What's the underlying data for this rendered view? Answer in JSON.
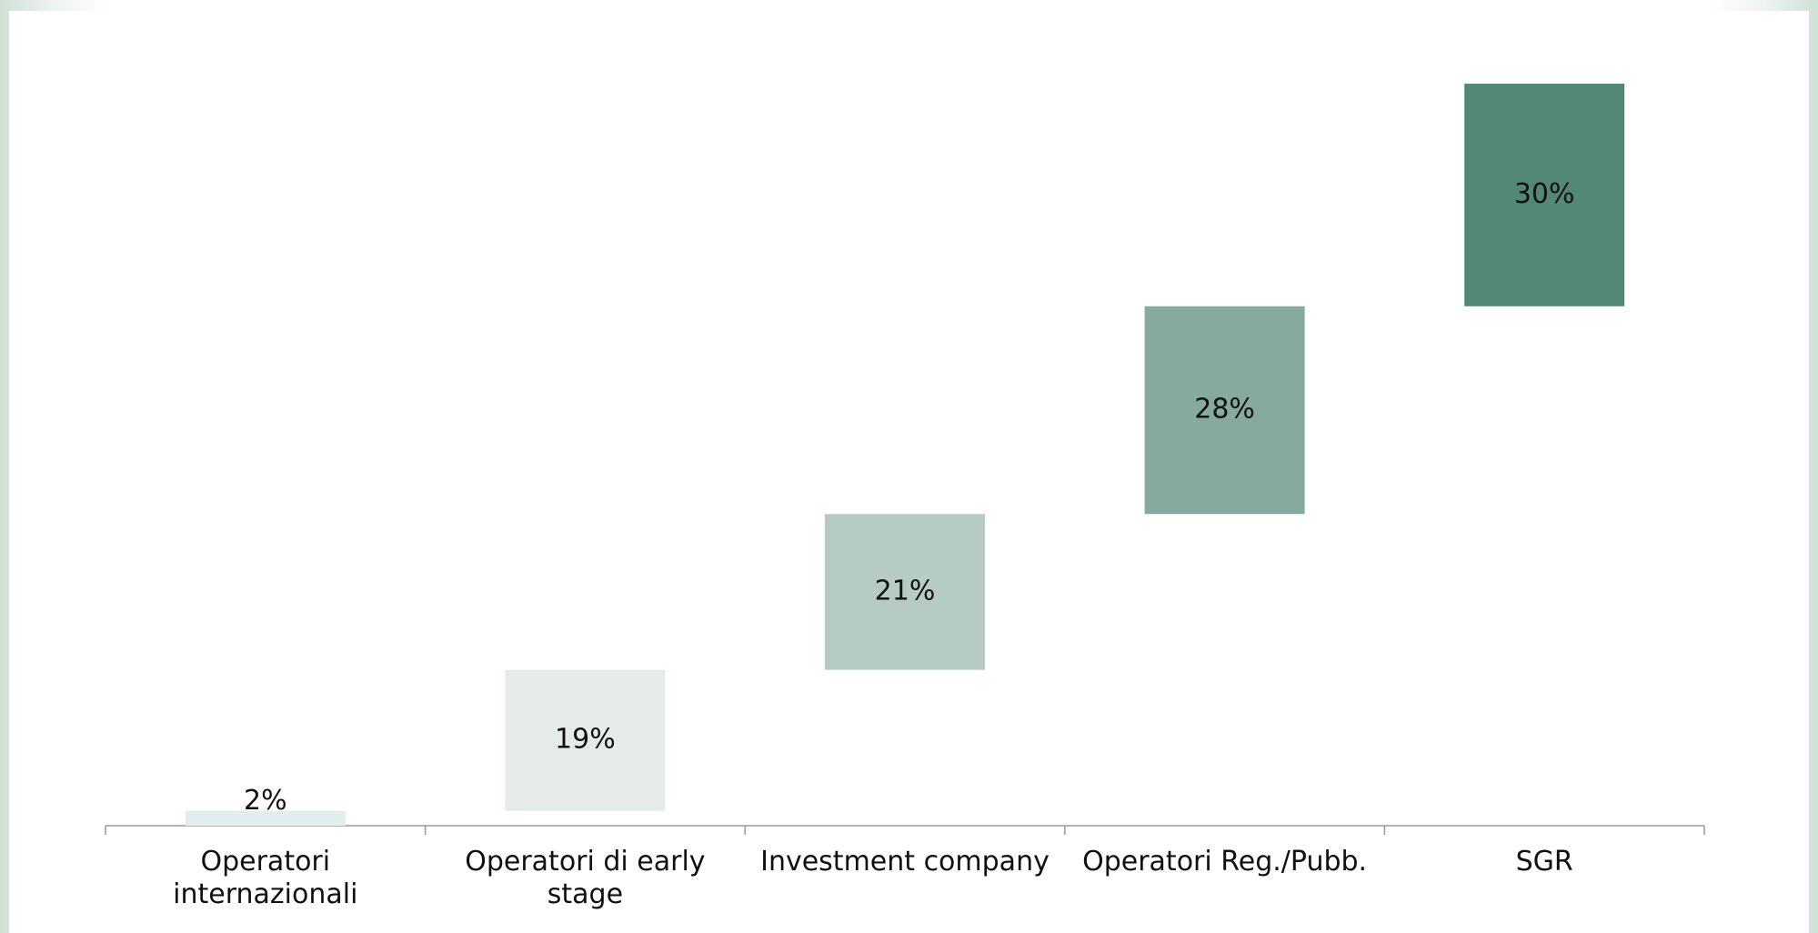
{
  "chart_data": {
    "type": "waterfall",
    "categories": [
      "Operatori internazionali",
      "Operatori di early stage",
      "Investment company",
      "Operatori Reg./Pubb.",
      "SGR"
    ],
    "values": [
      2,
      19,
      21,
      28,
      30
    ],
    "value_labels": [
      "2%",
      "19%",
      "21%",
      "28%",
      "30%"
    ],
    "colors": [
      "#e2edee",
      "#e5ebe8",
      "#b5cbc3",
      "#86aa9f",
      "#538877"
    ],
    "ylim": [
      0,
      100
    ]
  }
}
